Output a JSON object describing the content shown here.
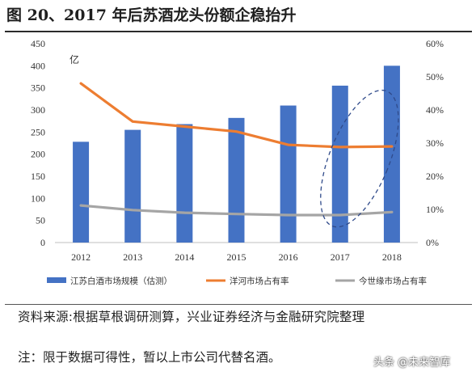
{
  "title": "图 20、2017 年后苏酒龙头份额企稳抬升",
  "source": "资料来源:根据草根调研测算，兴业证券经济与金融研究院整理",
  "note": "注：限于数据可得性，暂以上市公司代替名酒。",
  "watermark": "头条 @未来智库",
  "chart_data": {
    "type": "bar",
    "categories": [
      "2012",
      "2013",
      "2014",
      "2015",
      "2016",
      "2017",
      "2018"
    ],
    "y_left": {
      "range": [
        0,
        450
      ],
      "ticks": [
        "0",
        "50",
        "100",
        "150",
        "200",
        "250",
        "300",
        "350",
        "400",
        "450"
      ],
      "unit_label": "亿"
    },
    "y_right": {
      "range": [
        0,
        0.6
      ],
      "ticks": [
        "0%",
        "10%",
        "20%",
        "30%",
        "40%",
        "50%",
        "60%"
      ]
    },
    "series": [
      {
        "name": "江苏白酒市场规模（估测）",
        "type": "bar",
        "axis": "left",
        "color": "#4472C4",
        "values": [
          228,
          255,
          268,
          282,
          310,
          355,
          400
        ]
      },
      {
        "name": "洋河市场占有率",
        "type": "line",
        "axis": "right",
        "color": "#ED7D31",
        "values": [
          0.48,
          0.365,
          0.35,
          0.335,
          0.295,
          0.288,
          0.29
        ]
      },
      {
        "name": "今世缘市场占有率",
        "type": "line",
        "axis": "right",
        "color": "#A5A5A5",
        "values": [
          0.112,
          0.098,
          0.09,
          0.086,
          0.083,
          0.083,
          0.092
        ]
      }
    ],
    "annotation": {
      "type": "dashed-ellipse",
      "around": [
        "2017",
        "2018"
      ],
      "color": "#2F4A8A"
    },
    "grid": false,
    "legend_position": "bottom"
  }
}
